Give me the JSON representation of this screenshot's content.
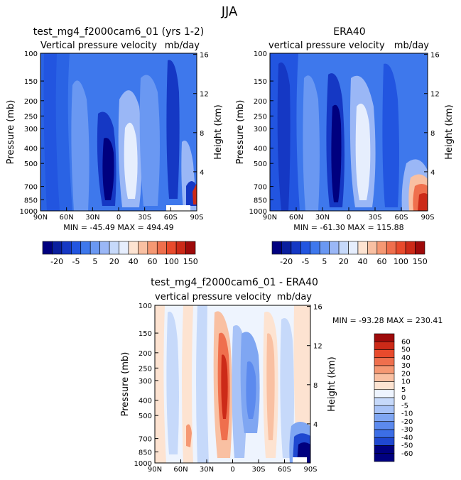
{
  "page": {
    "season_title": "JJA"
  },
  "colors": {
    "w20": "#00007f",
    "w15": "#0a1f9e",
    "w10": "#1538c4",
    "w5": "#2255e0",
    "w0": "#3e78ec",
    "p5": "#6a98f2",
    "p10": "#9ab7f6",
    "p15": "#c6d9fa",
    "p20": "#e6eefd",
    "d0": "#eef4fe",
    "dm5": "#c6d9fa",
    "dm10": "#a8c3f7",
    "dm20": "#7fa6f2",
    "dm30": "#5c8aee",
    "dm40": "#3c6ee6",
    "dm50": "#1f48d0",
    "dm60": "#00007f",
    "pos5": "#fde3d1",
    "pos10": "#f9c0a2",
    "pos20": "#f59873",
    "pos30": "#ef6f4d",
    "pos40": "#e84a2c",
    "pos50": "#cc2a18",
    "pos60": "#9e0a0a"
  },
  "chart_data": [
    {
      "id": "model",
      "type": "heatmap",
      "title": "test_mg4_f2000cam6_01 (yrs 1-2)",
      "left_subtitle": "Vertical pressure velocity",
      "right_subtitle": "mb/day",
      "ylabel": "Pressure (mb)",
      "ylabel_right": "Height (km)",
      "y_ticks": [
        "100",
        "150",
        "200",
        "250",
        "300",
        "400",
        "500",
        "700",
        "850",
        "1000"
      ],
      "y_ticks_right": [
        "16",
        "12",
        "8",
        "4"
      ],
      "x_ticks": [
        "90N",
        "60N",
        "30N",
        "0",
        "30S",
        "60S",
        "90S"
      ],
      "stats": "MIN = -45.49   MAX = 494.49",
      "xlim": [
        90,
        -90
      ],
      "ylim": [
        100,
        1000
      ],
      "colorbar_labels": [
        "-20",
        "-5",
        "5",
        "20",
        "40",
        "60",
        "100",
        "150"
      ]
    },
    {
      "id": "obs",
      "type": "heatmap",
      "title": "ERA40",
      "left_subtitle": "vertical pressure velocity",
      "right_subtitle": "mb/day",
      "ylabel": "Pressure (mb)",
      "ylabel_right": "Height (km)",
      "y_ticks": [
        "100",
        "150",
        "200",
        "250",
        "300",
        "400",
        "500",
        "700",
        "850",
        "1000"
      ],
      "y_ticks_right": [
        "16",
        "12",
        "8",
        "4"
      ],
      "x_ticks": [
        "90N",
        "60N",
        "30N",
        "0",
        "30S",
        "60S",
        "90S"
      ],
      "stats": "MIN = -61.30   MAX = 115.88",
      "xlim": [
        90,
        -90
      ],
      "ylim": [
        100,
        1000
      ],
      "colorbar_labels": [
        "-20",
        "-5",
        "5",
        "20",
        "40",
        "60",
        "100",
        "150"
      ]
    },
    {
      "id": "diff",
      "type": "heatmap",
      "title": "test_mg4_f2000cam6_01 - ERA40",
      "left_subtitle": "vertical pressure velocity",
      "right_subtitle": "mb/day",
      "ylabel": "Pressure (mb)",
      "ylabel_right": "Height (km)",
      "y_ticks": [
        "100",
        "150",
        "200",
        "250",
        "300",
        "400",
        "500",
        "700",
        "850",
        "1000"
      ],
      "y_ticks_right": [
        "16",
        "12",
        "8",
        "4"
      ],
      "x_ticks": [
        "90N",
        "60N",
        "30N",
        "0",
        "30S",
        "60S",
        "90S"
      ],
      "stats": "MIN = -93.28   MAX = 230.41",
      "xlim": [
        90,
        -90
      ],
      "ylim": [
        100,
        1000
      ],
      "colorbar_labels": [
        "60",
        "50",
        "40",
        "30",
        "20",
        "10",
        "5",
        "0",
        "-5",
        "-10",
        "-20",
        "-30",
        "-40",
        "-50",
        "-60"
      ]
    }
  ]
}
